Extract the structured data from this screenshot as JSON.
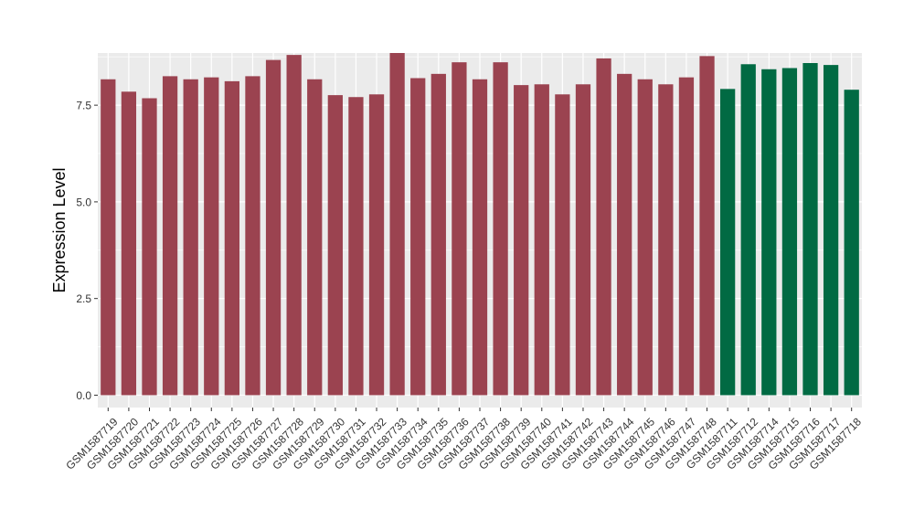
{
  "chart_data": {
    "type": "bar",
    "title": "",
    "xlabel": "",
    "ylabel": "Expression Level",
    "ylim": [
      -0.32,
      8.85
    ],
    "yticks": [
      0.0,
      2.5,
      5.0,
      7.5
    ],
    "ytick_labels": [
      "0.0",
      "2.5",
      "5.0",
      "7.5"
    ],
    "grid": true,
    "legend": "none",
    "panel_background": "#EBEBEB",
    "grid_color": "#FFFFFF",
    "categories": [
      "GSM1587719",
      "GSM1587720",
      "GSM1587721",
      "GSM1587722",
      "GSM1587723",
      "GSM1587724",
      "GSM1587725",
      "GSM1587726",
      "GSM1587727",
      "GSM1587728",
      "GSM1587729",
      "GSM1587730",
      "GSM1587731",
      "GSM1587732",
      "GSM1587733",
      "GSM1587734",
      "GSM1587735",
      "GSM1587736",
      "GSM1587737",
      "GSM1587738",
      "GSM1587739",
      "GSM1587740",
      "GSM1587741",
      "GSM1587742",
      "GSM1587743",
      "GSM1587744",
      "GSM1587745",
      "GSM1587746",
      "GSM1587747",
      "GSM1587748",
      "GSM1587711",
      "GSM1587712",
      "GSM1587714",
      "GSM1587715",
      "GSM1587716",
      "GSM1587717",
      "GSM1587718"
    ],
    "values": [
      8.17,
      7.85,
      7.68,
      8.25,
      8.17,
      8.22,
      8.12,
      8.25,
      8.67,
      8.8,
      8.17,
      7.76,
      7.71,
      7.78,
      8.85,
      8.2,
      8.31,
      8.61,
      8.17,
      8.61,
      8.02,
      8.04,
      7.78,
      8.04,
      8.71,
      8.31,
      8.17,
      8.04,
      8.22,
      8.77,
      7.92,
      8.56,
      8.43,
      8.46,
      8.59,
      8.54,
      7.9
    ],
    "colors": [
      "#9B4350",
      "#9B4350",
      "#9B4350",
      "#9B4350",
      "#9B4350",
      "#9B4350",
      "#9B4350",
      "#9B4350",
      "#9B4350",
      "#9B4350",
      "#9B4350",
      "#9B4350",
      "#9B4350",
      "#9B4350",
      "#9B4350",
      "#9B4350",
      "#9B4350",
      "#9B4350",
      "#9B4350",
      "#9B4350",
      "#9B4350",
      "#9B4350",
      "#9B4350",
      "#9B4350",
      "#9B4350",
      "#9B4350",
      "#9B4350",
      "#9B4350",
      "#9B4350",
      "#9B4350",
      "#016A43",
      "#016A43",
      "#016A43",
      "#016A43",
      "#016A43",
      "#016A43",
      "#016A43"
    ]
  }
}
